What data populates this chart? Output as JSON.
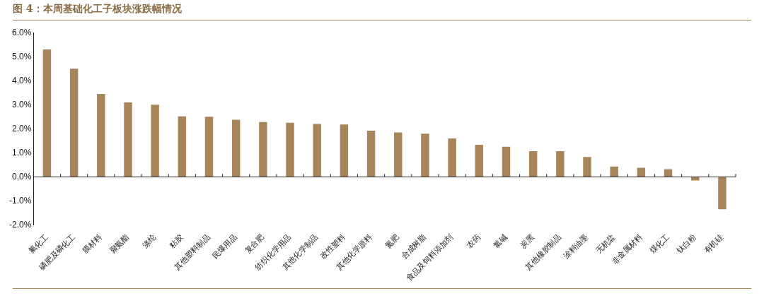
{
  "chart_data": {
    "type": "bar",
    "title": "图 4：本周基础化工子板块涨跌幅情况",
    "categories": [
      "氟化工",
      "磷肥及磷化工",
      "膜材料",
      "聚氨酯",
      "涤纶",
      "粘胶",
      "其他塑料制品",
      "民爆用品",
      "复合肥",
      "纺织化学用品",
      "其他化学制品",
      "改性塑料",
      "其他化学原料",
      "氮肥",
      "合成树脂",
      "食品及饲料添加剂",
      "农药",
      "氯碱",
      "炭黑",
      "其他橡胶制品",
      "涂料油墨",
      "无机盐",
      "非金属材料",
      "煤化工",
      "钛白粉",
      "有机硅"
    ],
    "values": [
      5.3,
      4.5,
      3.45,
      3.1,
      3.0,
      2.52,
      2.5,
      2.38,
      2.28,
      2.25,
      2.2,
      2.18,
      1.92,
      1.85,
      1.8,
      1.6,
      1.33,
      1.25,
      1.07,
      1.07,
      0.83,
      0.43,
      0.38,
      0.32,
      -0.15,
      -1.35
    ],
    "color": "#a8845a",
    "ylim": [
      -2,
      6
    ],
    "yticks": [
      {
        "value": -2,
        "label": "-2.0%"
      },
      {
        "value": -1,
        "label": "-1.0%"
      },
      {
        "value": 0,
        "label": "0.0%"
      },
      {
        "value": 1,
        "label": "1.0%"
      },
      {
        "value": 2,
        "label": "2.0%"
      },
      {
        "value": 3,
        "label": "3.0%"
      },
      {
        "value": 4,
        "label": "4.0%"
      },
      {
        "value": 5,
        "label": "5.0%"
      },
      {
        "value": 6,
        "label": "6.0%"
      }
    ],
    "legend": false
  }
}
